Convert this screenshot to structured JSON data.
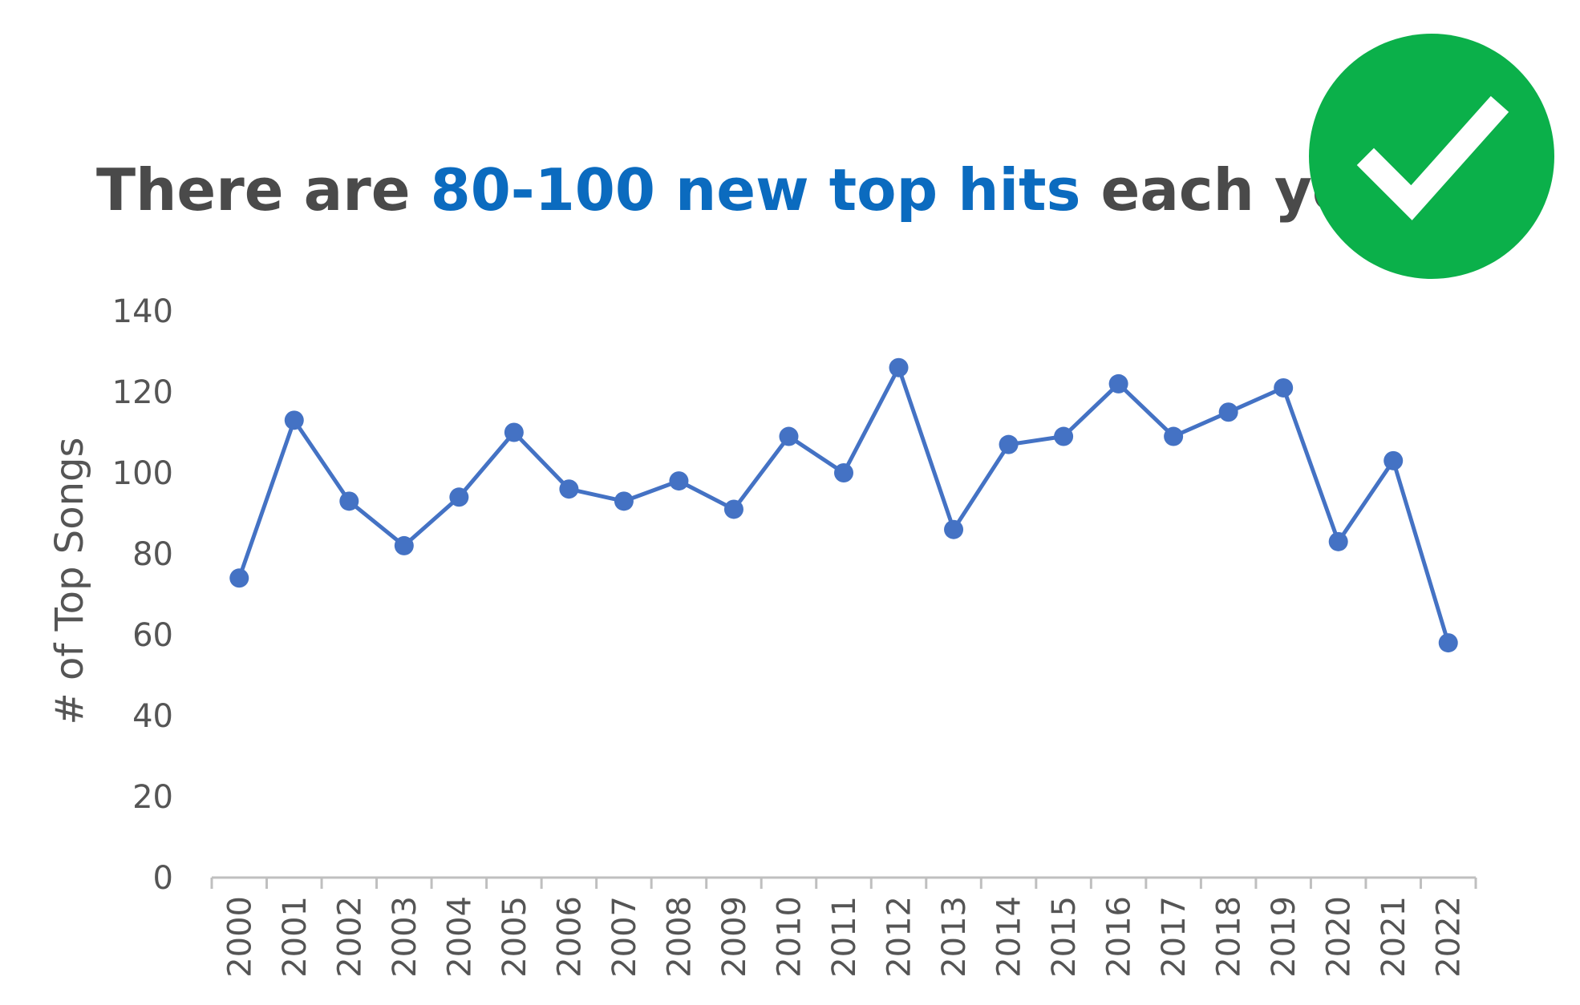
{
  "headline": {
    "part1": "There are ",
    "highlight": "80-100 new top hits",
    "part2": " each year"
  },
  "badge": {
    "icon": "checkmark-icon",
    "color": "#0bb04a"
  },
  "colors": {
    "title": "#4a4a4a",
    "highlight": "#0b6bbf",
    "series": "#4472c4",
    "axis": "#bfbfbf",
    "tick_text": "#555555"
  },
  "chart_data": {
    "type": "line",
    "x": [
      "2000",
      "2001",
      "2002",
      "2003",
      "2004",
      "2005",
      "2006",
      "2007",
      "2008",
      "2009",
      "2010",
      "2011",
      "2012",
      "2013",
      "2014",
      "2015",
      "2016",
      "2017",
      "2018",
      "2019",
      "2020",
      "2021",
      "2022"
    ],
    "series": [
      {
        "values": [
          74,
          113,
          93,
          82,
          94,
          110,
          96,
          93,
          98,
          91,
          109,
          100,
          126,
          86,
          107,
          109,
          122,
          109,
          115,
          121,
          83,
          103,
          58
        ]
      }
    ],
    "ylabel": "# of Top Songs",
    "xlabel": "",
    "ylim": [
      0,
      140
    ],
    "yticks": [
      0,
      20,
      40,
      60,
      80,
      100,
      120,
      140
    ],
    "grid": false,
    "markers": true
  }
}
